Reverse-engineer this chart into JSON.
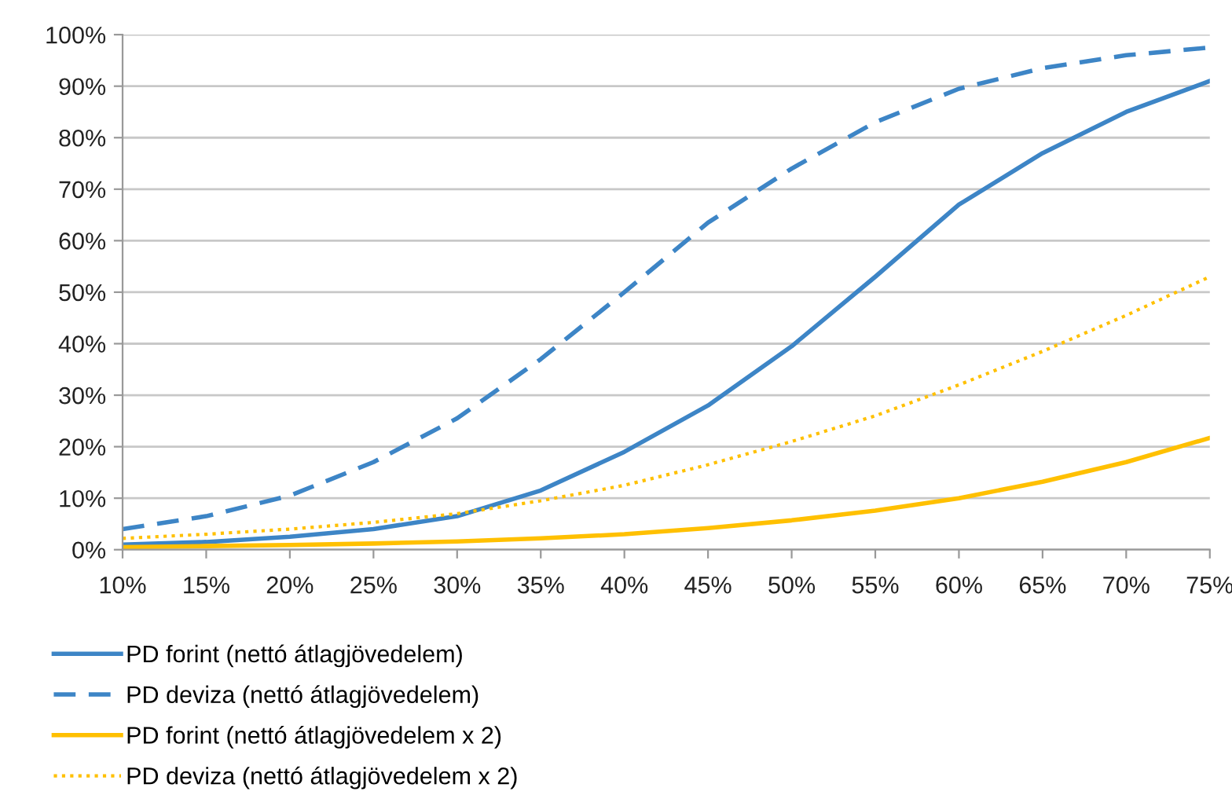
{
  "chart_data": {
    "type": "line",
    "x": [
      10,
      15,
      20,
      25,
      30,
      35,
      40,
      45,
      50,
      55,
      60,
      65,
      70,
      75
    ],
    "series": [
      {
        "name": "PD forint (nettó átlagjövedelem)",
        "color": "#3d85c6",
        "line_style": "solid",
        "values": [
          1,
          1.5,
          2.5,
          4,
          6.5,
          11.5,
          19,
          28,
          39.5,
          53,
          67,
          77,
          85,
          91
        ]
      },
      {
        "name": "PD deviza (nettó átlagjövedelem)",
        "color": "#3d85c6",
        "line_style": "dashed",
        "values": [
          4,
          6.5,
          10.5,
          17,
          25.5,
          37,
          50,
          63.5,
          74,
          83,
          89.5,
          93.5,
          96,
          97.5
        ]
      },
      {
        "name": "PD forint (nettó átlagjövedelem x 2)",
        "color": "#ffc000",
        "line_style": "solid",
        "values": [
          0.5,
          0.7,
          0.9,
          1.2,
          1.6,
          2.2,
          3,
          4.2,
          5.7,
          7.6,
          10,
          13.2,
          17,
          21.7
        ]
      },
      {
        "name": "PD deviza (nettó átlagjövedelem x 2)",
        "color": "#ffc000",
        "line_style": "dotted",
        "values": [
          2.2,
          3,
          4,
          5.3,
          7,
          9.5,
          12.5,
          16.5,
          21,
          26,
          32,
          38.5,
          45.5,
          53
        ]
      }
    ],
    "xlim": [
      10,
      75
    ],
    "xticks": [
      {
        "value": 10,
        "label": "10%"
      },
      {
        "value": 15,
        "label": "15%"
      },
      {
        "value": 20,
        "label": "20%"
      },
      {
        "value": 25,
        "label": "25%"
      },
      {
        "value": 30,
        "label": "30%"
      },
      {
        "value": 35,
        "label": "35%"
      },
      {
        "value": 40,
        "label": "40%"
      },
      {
        "value": 45,
        "label": "45%"
      },
      {
        "value": 50,
        "label": "50%"
      },
      {
        "value": 55,
        "label": "55%"
      },
      {
        "value": 60,
        "label": "60%"
      },
      {
        "value": 65,
        "label": "65%"
      },
      {
        "value": 70,
        "label": "70%"
      },
      {
        "value": 75,
        "label": "75%"
      }
    ],
    "ylim": [
      0,
      100
    ],
    "yticks": [
      {
        "value": 0,
        "label": "0%"
      },
      {
        "value": 10,
        "label": "10%"
      },
      {
        "value": 20,
        "label": "20%"
      },
      {
        "value": 30,
        "label": "30%"
      },
      {
        "value": 40,
        "label": "40%"
      },
      {
        "value": 50,
        "label": "50%"
      },
      {
        "value": 60,
        "label": "60%"
      },
      {
        "value": 70,
        "label": "70%"
      },
      {
        "value": 80,
        "label": "80%"
      },
      {
        "value": 90,
        "label": "90%"
      },
      {
        "value": 100,
        "label": "100%"
      }
    ],
    "grid": "y",
    "legend": "bottom"
  }
}
